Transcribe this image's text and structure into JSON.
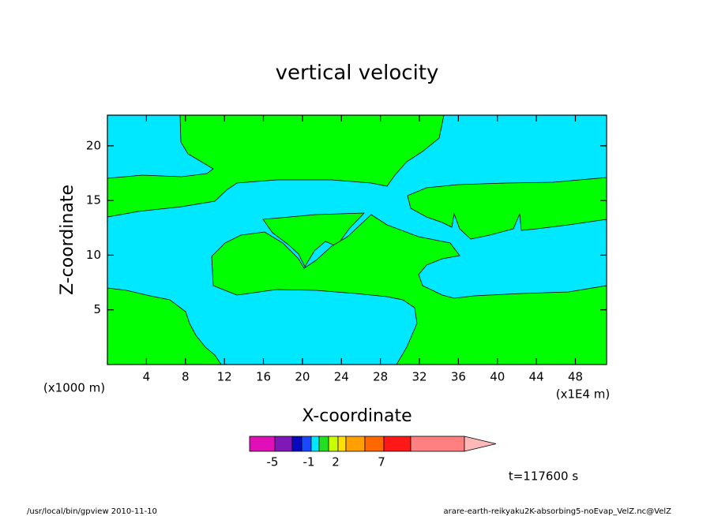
{
  "chart_data": {
    "type": "contour",
    "title": "vertical velocity",
    "x_label": "X-coordinate",
    "y_label": "Z-coordinate",
    "x_unit_label": "(x1000 m)",
    "x_unit_label_2": "(x1E4 m)",
    "xlim": [
      0,
      51.2
    ],
    "ylim": [
      0,
      22.8
    ],
    "xticks": [
      4,
      8,
      12,
      16,
      20,
      24,
      28,
      32,
      36,
      40,
      44,
      48
    ],
    "yticks": [
      5,
      10,
      15,
      20
    ],
    "colorbar": {
      "colors": [
        "#e010b8",
        "#8018b8",
        "#0808c0",
        "#1848ff",
        "#00e8ff",
        "#20e020",
        "#c8ff00",
        "#ffe000",
        "#ffa000",
        "#ff6800",
        "#ff1818",
        "#ff8080",
        "#ffb8b8"
      ],
      "ticks": [
        -5,
        -1,
        2,
        7
      ]
    },
    "time_label": "t=117600 s",
    "footer_left": "/usr/local/bin/gpview  2010-11-10",
    "footer_right": "arare-earth-reikyaku2K-absorbing5-noEvap_VelZ.nc@VelZ"
  }
}
